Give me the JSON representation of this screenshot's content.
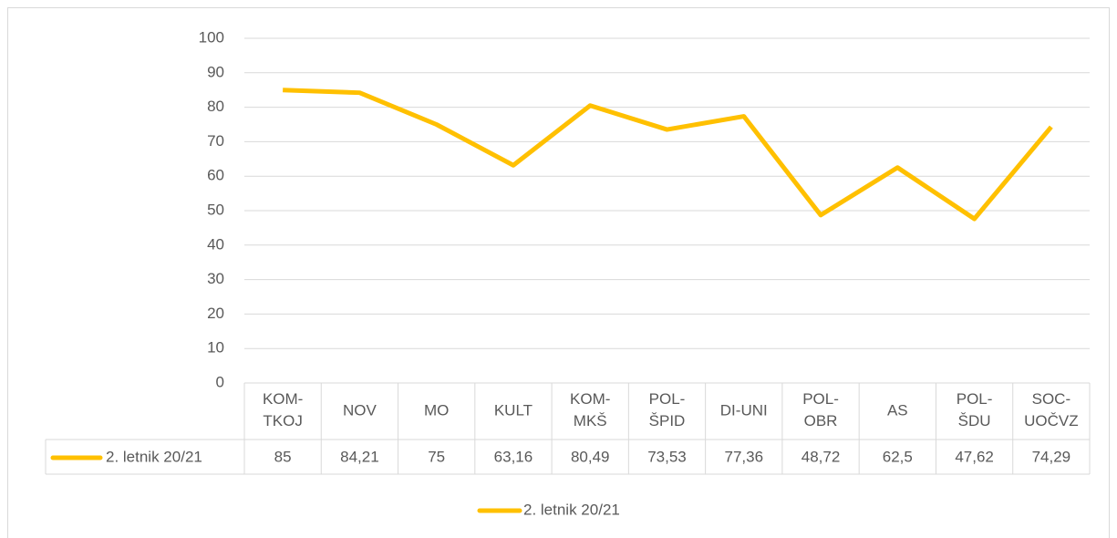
{
  "chart_data": {
    "type": "line",
    "categories": [
      "KOM-TKOJ",
      "NOV",
      "MO",
      "KULT",
      "KOM-MKŠ",
      "POL-ŠPID",
      "DI-UNI",
      "POL-OBR",
      "AS",
      "POL-ŠDU",
      "SOC-UOČVZ"
    ],
    "series": [
      {
        "name": "2. letnik 20/21",
        "color": "#FFC000",
        "values": [
          85,
          84.21,
          75,
          63.16,
          80.49,
          73.53,
          77.36,
          48.72,
          62.5,
          47.62,
          74.29
        ],
        "value_labels": [
          "85",
          "84,21",
          "75",
          "63,16",
          "80,49",
          "73,53",
          "77,36",
          "48,72",
          "62,5",
          "47,62",
          "74,29"
        ]
      }
    ],
    "ylim": [
      0,
      100
    ],
    "yticks": [
      0,
      10,
      20,
      30,
      40,
      50,
      60,
      70,
      80,
      90,
      100
    ],
    "grid": true,
    "legend": "bottom",
    "data_table": true
  }
}
